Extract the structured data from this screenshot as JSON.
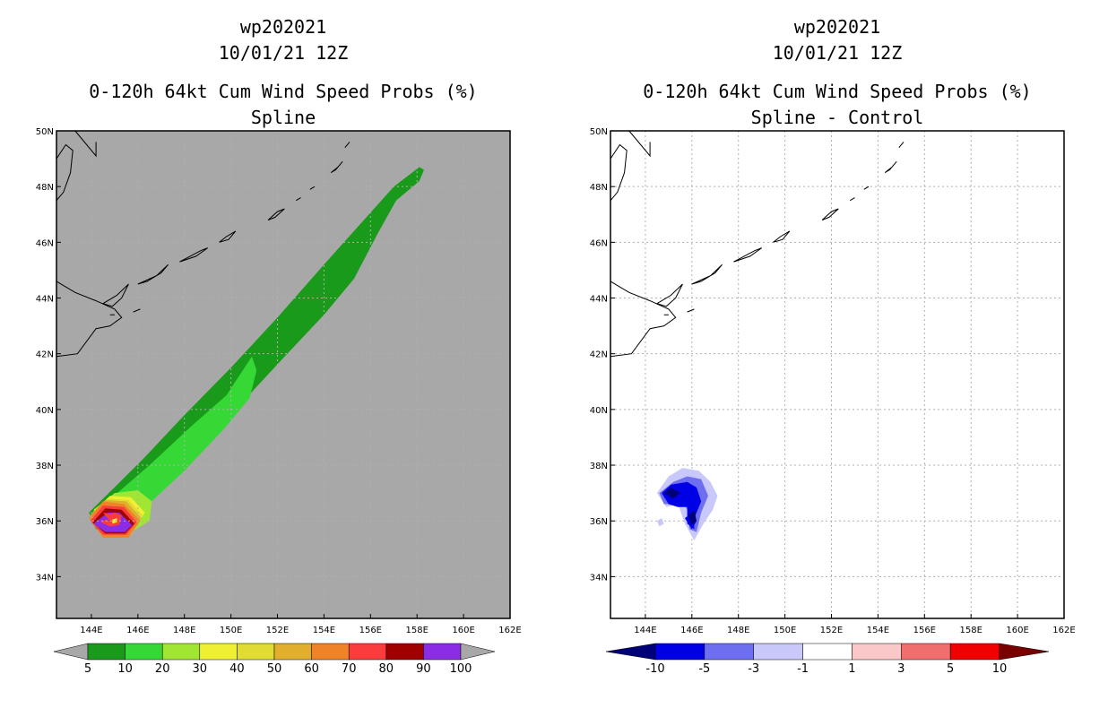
{
  "chart_data": [
    {
      "type": "heatmap",
      "title_lines": [
        "wp202021",
        "10/01/21 12Z",
        "0-120h 64kt Cum Wind Speed Probs (%)",
        "Spline"
      ],
      "xlabel": "",
      "ylabel": "",
      "xlim": [
        142.5,
        162
      ],
      "ylim": [
        32.5,
        50
      ],
      "x_ticks": [
        144,
        146,
        148,
        150,
        152,
        154,
        156,
        158,
        160,
        162
      ],
      "x_tick_labels": [
        "144E",
        "146E",
        "148E",
        "150E",
        "152E",
        "154E",
        "156E",
        "158E",
        "160E",
        "162E"
      ],
      "y_ticks": [
        34,
        36,
        38,
        40,
        42,
        44,
        46,
        48,
        50
      ],
      "y_tick_labels": [
        "34N",
        "36N",
        "38N",
        "40N",
        "42N",
        "44N",
        "46N",
        "48N",
        "50N"
      ],
      "grid": true,
      "background": "#a8a8a8",
      "colorbar": {
        "labels": [
          "5",
          "10",
          "20",
          "30",
          "40",
          "50",
          "60",
          "70",
          "80",
          "90",
          "100"
        ],
        "colors": [
          "#1a9a1a",
          "#36d836",
          "#a0e632",
          "#f0f032",
          "#e1dc32",
          "#e1af2d",
          "#f08228",
          "#fa3c3c",
          "#a00000",
          "#8c2de6"
        ],
        "end_colors": [
          "#a8a8a8",
          "#a8a8a8"
        ]
      }
    },
    {
      "type": "heatmap",
      "title_lines": [
        "wp202021",
        "10/01/21 12Z",
        "0-120h 64kt Cum Wind Speed Probs (%)",
        "Spline - Control"
      ],
      "xlabel": "",
      "ylabel": "",
      "xlim": [
        142.5,
        162
      ],
      "ylim": [
        32.5,
        50
      ],
      "x_ticks": [
        144,
        146,
        148,
        150,
        152,
        154,
        156,
        158,
        160,
        162
      ],
      "x_tick_labels": [
        "144E",
        "146E",
        "148E",
        "150E",
        "152E",
        "154E",
        "156E",
        "158E",
        "160E",
        "162E"
      ],
      "y_ticks": [
        34,
        36,
        38,
        40,
        42,
        44,
        46,
        48,
        50
      ],
      "y_tick_labels": [
        "34N",
        "36N",
        "38N",
        "40N",
        "42N",
        "44N",
        "46N",
        "48N",
        "50N"
      ],
      "grid": true,
      "background": "#ffffff",
      "colorbar": {
        "labels": [
          "-10",
          "-5",
          "-3",
          "-1",
          "1",
          "3",
          "5",
          "10"
        ],
        "colors": [
          "#0000e6",
          "#6e6ef0",
          "#c8c8fa",
          "#ffffff",
          "#fac8c8",
          "#f06e6e",
          "#f00000"
        ],
        "end_colors": [
          "#000078",
          "#780000"
        ]
      }
    }
  ]
}
